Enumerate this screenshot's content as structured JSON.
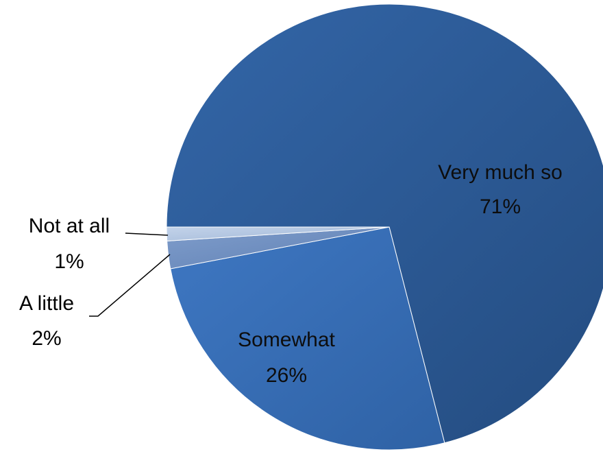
{
  "chart_data": {
    "type": "pie",
    "slices": [
      {
        "label": "Very much so",
        "value": 71,
        "value_label": "71%",
        "color": "#2f5d9a"
      },
      {
        "label": "Somewhat",
        "value": 26,
        "value_label": "26%",
        "color": "#3a70b8"
      },
      {
        "label": "A little",
        "value": 2,
        "value_label": "2%",
        "color": "#6f8fc0"
      },
      {
        "label": "Not at all",
        "value": 1,
        "value_label": "1%",
        "color": "#a9bfdc"
      }
    ]
  }
}
